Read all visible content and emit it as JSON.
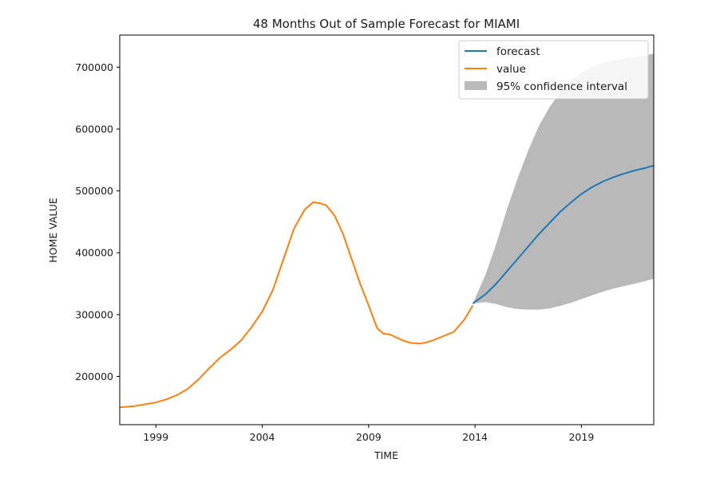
{
  "chart_data": {
    "type": "line",
    "title": "48 Months Out of Sample Forecast for MIAMI",
    "xlabel": "TIME",
    "ylabel": "HOME VALUE",
    "xlim": [
      1997.3,
      2022.4
    ],
    "ylim": [
      122000,
      752000
    ],
    "x_ticks": [
      1999,
      2004,
      2009,
      2014,
      2019
    ],
    "x_tick_labels": [
      "1999",
      "2004",
      "2009",
      "2014",
      "2019"
    ],
    "y_ticks": [
      200000,
      300000,
      400000,
      500000,
      600000,
      700000
    ],
    "y_tick_labels": [
      "200000",
      "300000",
      "400000",
      "500000",
      "600000",
      "700000"
    ],
    "grid": false,
    "legend_position": "top-right",
    "colors": {
      "forecast": "#1f77b4",
      "value": "#ff7f0e",
      "confidence": "#808080"
    },
    "legend": [
      {
        "label": "forecast",
        "kind": "line",
        "color": "#1f77b4"
      },
      {
        "label": "value",
        "kind": "line",
        "color": "#ff7f0e"
      },
      {
        "label": "95% confidence interval",
        "kind": "patch",
        "color": "#808080"
      }
    ],
    "series": [
      {
        "name": "value",
        "x": [
          1997.3,
          1998.0,
          1998.5,
          1999.0,
          1999.5,
          2000.0,
          2000.5,
          2001.0,
          2001.5,
          2002.0,
          2002.5,
          2003.0,
          2003.5,
          2004.0,
          2004.5,
          2005.0,
          2005.5,
          2006.0,
          2006.4,
          2006.7,
          2007.0,
          2007.4,
          2007.8,
          2008.2,
          2008.6,
          2009.0,
          2009.4,
          2009.7,
          2010.0,
          2010.3,
          2010.7,
          2011.0,
          2011.4,
          2011.7,
          2012.0,
          2012.5,
          2013.0,
          2013.5,
          2013.9
        ],
        "y": [
          150000,
          152000,
          155000,
          158000,
          163000,
          170000,
          180000,
          195000,
          213000,
          230000,
          243000,
          258000,
          280000,
          305000,
          340000,
          390000,
          440000,
          470000,
          482000,
          480000,
          477000,
          460000,
          430000,
          390000,
          350000,
          315000,
          278000,
          269000,
          268000,
          263000,
          257000,
          254000,
          253000,
          255000,
          258000,
          265000,
          272000,
          292000,
          315000
        ],
        "color": "#ff7f0e"
      },
      {
        "name": "forecast",
        "x": [
          2013.9,
          2014.5,
          2015.0,
          2015.5,
          2016.0,
          2016.5,
          2017.0,
          2017.5,
          2018.0,
          2018.5,
          2019.0,
          2019.5,
          2020.0,
          2020.5,
          2021.0,
          2021.5,
          2022.0,
          2022.4
        ],
        "y": [
          318000,
          333000,
          350000,
          370000,
          390000,
          410000,
          430000,
          448000,
          466000,
          481000,
          495000,
          506000,
          515000,
          522000,
          528000,
          533000,
          537000,
          541000
        ],
        "color": "#1f77b4"
      },
      {
        "name": "95% confidence interval",
        "x": [
          2013.9,
          2014.5,
          2015.0,
          2015.5,
          2016.0,
          2016.5,
          2017.0,
          2017.5,
          2018.0,
          2018.5,
          2019.0,
          2019.5,
          2020.0,
          2020.5,
          2021.0,
          2021.5,
          2022.0,
          2022.4
        ],
        "upper": [
          318000,
          365000,
          415000,
          470000,
          520000,
          565000,
          605000,
          635000,
          660000,
          678000,
          691000,
          700000,
          707000,
          711000,
          714000,
          716000,
          719000,
          722000
        ],
        "lower": [
          318000,
          320000,
          317000,
          312000,
          309000,
          308000,
          308000,
          310000,
          314000,
          319000,
          325000,
          331000,
          337000,
          342000,
          346000,
          350000,
          354000,
          358000
        ],
        "color": "#808080"
      }
    ]
  }
}
